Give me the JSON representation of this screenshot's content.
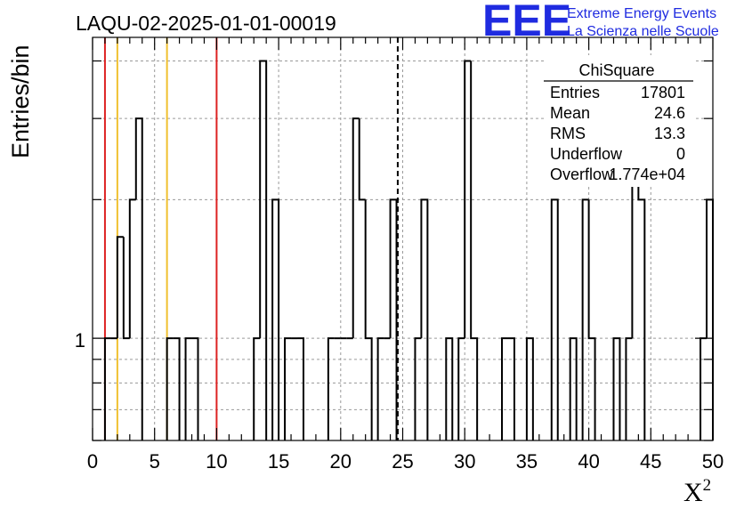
{
  "chart_data": {
    "type": "bar",
    "title": "LAQU-02-2025-01-01-00019",
    "xlabel": "Χ",
    "xlabel_superscript": "2",
    "ylabel": "Entries/bin",
    "xlim": [
      0,
      50
    ],
    "ylim": [
      0.6,
      4.5
    ],
    "y_log_scale": true,
    "grid": true,
    "bin_width": 0.5,
    "bins": [
      {
        "x": 1.0,
        "y": 1
      },
      {
        "x": 1.5,
        "y": 1
      },
      {
        "x": 2.0,
        "y": 1.66
      },
      {
        "x": 2.5,
        "y": 1
      },
      {
        "x": 3.0,
        "y": 2
      },
      {
        "x": 3.5,
        "y": 3
      },
      {
        "x": 6.0,
        "y": 1
      },
      {
        "x": 6.5,
        "y": 1
      },
      {
        "x": 7.5,
        "y": 1
      },
      {
        "x": 8.0,
        "y": 1
      },
      {
        "x": 13.0,
        "y": 1
      },
      {
        "x": 13.5,
        "y": 4
      },
      {
        "x": 14.5,
        "y": 2
      },
      {
        "x": 15.5,
        "y": 1
      },
      {
        "x": 16.0,
        "y": 1
      },
      {
        "x": 16.5,
        "y": 1
      },
      {
        "x": 19.0,
        "y": 1
      },
      {
        "x": 19.5,
        "y": 1
      },
      {
        "x": 20.0,
        "y": 1
      },
      {
        "x": 20.5,
        "y": 1
      },
      {
        "x": 21.0,
        "y": 3
      },
      {
        "x": 21.5,
        "y": 2
      },
      {
        "x": 22.0,
        "y": 1
      },
      {
        "x": 23.0,
        "y": 1
      },
      {
        "x": 23.5,
        "y": 1
      },
      {
        "x": 24.0,
        "y": 2
      },
      {
        "x": 26.0,
        "y": 1
      },
      {
        "x": 26.5,
        "y": 2
      },
      {
        "x": 28.5,
        "y": 1
      },
      {
        "x": 29.5,
        "y": 1
      },
      {
        "x": 30.0,
        "y": 4
      },
      {
        "x": 30.5,
        "y": 1
      },
      {
        "x": 33.0,
        "y": 1
      },
      {
        "x": 33.5,
        "y": 1
      },
      {
        "x": 35.0,
        "y": 1
      },
      {
        "x": 37.0,
        "y": 2
      },
      {
        "x": 38.5,
        "y": 1
      },
      {
        "x": 39.5,
        "y": 2
      },
      {
        "x": 40.0,
        "y": 1
      },
      {
        "x": 42.0,
        "y": 1
      },
      {
        "x": 43.0,
        "y": 1
      },
      {
        "x": 43.5,
        "y": 3
      },
      {
        "x": 44.0,
        "y": 2
      },
      {
        "x": 49.0,
        "y": 1
      },
      {
        "x": 49.5,
        "y": 2
      }
    ],
    "x_ticks": [
      "0",
      "5",
      "10",
      "15",
      "20",
      "25",
      "30",
      "35",
      "40",
      "45",
      "50"
    ],
    "y_tick_label": "1",
    "vertical_lines": [
      {
        "x": 1.0,
        "color": "#dd2222",
        "style": "solid"
      },
      {
        "x": 2.0,
        "color": "#f0c030",
        "style": "solid"
      },
      {
        "x": 6.0,
        "color": "#f0c030",
        "style": "solid"
      },
      {
        "x": 10.0,
        "color": "#dd2222",
        "style": "solid"
      },
      {
        "x": 24.6,
        "color": "#000000",
        "style": "dashed"
      }
    ],
    "stats_box": {
      "name": "ChiSquare",
      "rows": [
        {
          "label": "Entries",
          "value": "17801"
        },
        {
          "label": "Mean",
          "value": "24.6"
        },
        {
          "label": "RMS",
          "value": "13.3"
        },
        {
          "label": "Underflow",
          "value": "0"
        },
        {
          "label": "Overflow",
          "value": "1.774e+04"
        }
      ]
    }
  },
  "logo": {
    "text": "EEE",
    "line1": "Extreme Energy Events",
    "line2": "La Scienza nelle Scuole",
    "color": "#1f2be0"
  }
}
